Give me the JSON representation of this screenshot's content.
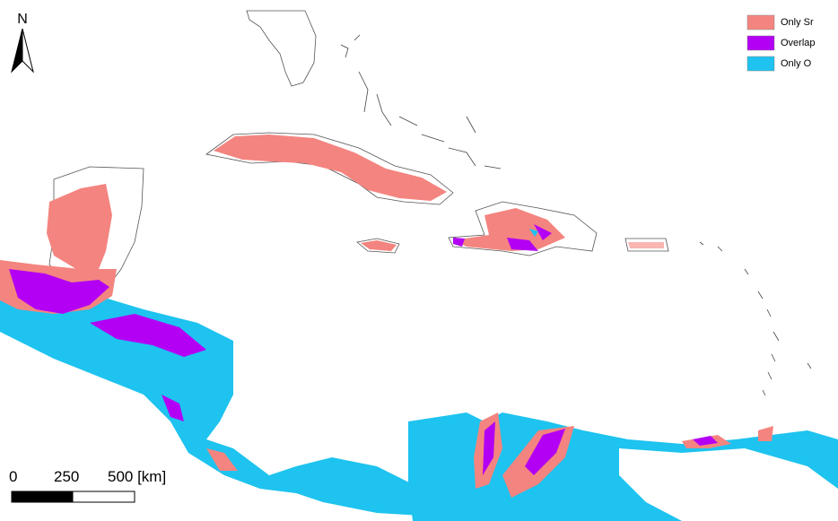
{
  "north_arrow": {
    "label": "N"
  },
  "legend": {
    "items": [
      {
        "label": "Only Sr",
        "color": "#f4847f"
      },
      {
        "label": "Overlap",
        "color": "#b300f5"
      },
      {
        "label": "Only O",
        "color": "#1ec3ef"
      }
    ]
  },
  "scale_bar": {
    "labels": [
      "0",
      "250",
      "500 [km]"
    ]
  }
}
